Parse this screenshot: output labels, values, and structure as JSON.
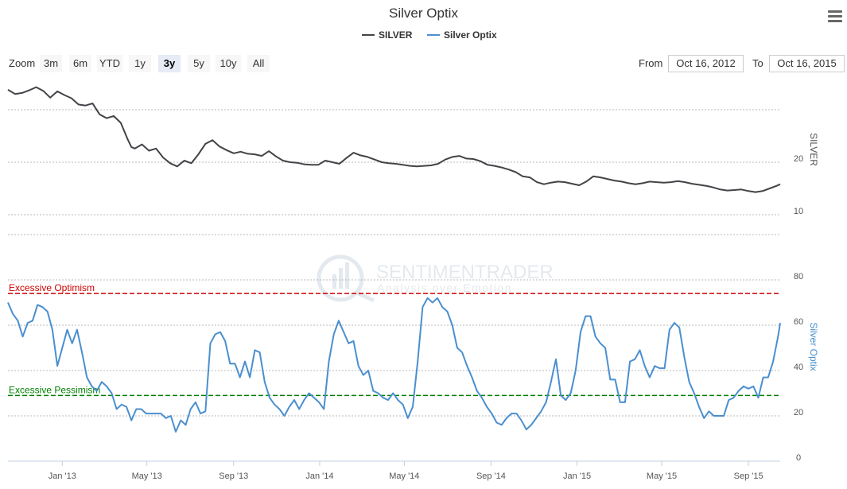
{
  "title": "Silver Optix",
  "legend": [
    {
      "name": "SILVER",
      "color": "#434348"
    },
    {
      "name": "Silver Optix",
      "color": "#4a8fcf"
    }
  ],
  "range_selector": {
    "zoom_label": "Zoom",
    "buttons": [
      "3m",
      "6m",
      "YTD",
      "1y",
      "3y",
      "5y",
      "10y",
      "All"
    ],
    "selected": "3y",
    "from_label": "From",
    "from_value": "Oct 16, 2012",
    "to_label": "To",
    "to_value": "Oct 16, 2015"
  },
  "watermark": {
    "brand": "SENTIMENTRADER",
    "tagline": "Analysis over Emotion"
  },
  "icons": {
    "menu": "hamburger-menu-icon"
  },
  "chart_data": [
    {
      "type": "line",
      "name": "SILVER",
      "ylabel": "SILVER",
      "color": "#434348",
      "yticks": [
        10,
        20
      ],
      "ylim": [
        5,
        35
      ],
      "x_range": [
        "2012-10-16",
        "2015-10-16"
      ],
      "series": [
        {
          "name": "SILVER",
          "x": [
            "2012-10-16",
            "2012-10-26",
            "2012-11-05",
            "2012-11-15",
            "2012-11-25",
            "2012-12-05",
            "2012-12-15",
            "2012-12-25",
            "2013-01-04",
            "2013-01-14",
            "2013-01-24",
            "2013-02-03",
            "2013-02-13",
            "2013-02-23",
            "2013-03-05",
            "2013-03-15",
            "2013-03-25",
            "2013-04-04",
            "2013-04-09",
            "2013-04-14",
            "2013-04-24",
            "2013-05-04",
            "2013-05-14",
            "2013-05-24",
            "2013-06-03",
            "2013-06-13",
            "2013-06-23",
            "2013-07-03",
            "2013-07-13",
            "2013-07-23",
            "2013-08-02",
            "2013-08-12",
            "2013-08-22",
            "2013-09-01",
            "2013-09-11",
            "2013-09-21",
            "2013-10-01",
            "2013-10-11",
            "2013-10-21",
            "2013-10-31",
            "2013-11-10",
            "2013-11-20",
            "2013-11-30",
            "2013-12-10",
            "2013-12-20",
            "2013-12-30",
            "2014-01-09",
            "2014-01-19",
            "2014-01-29",
            "2014-02-08",
            "2014-02-18",
            "2014-02-28",
            "2014-03-10",
            "2014-03-20",
            "2014-03-30",
            "2014-04-09",
            "2014-04-19",
            "2014-04-29",
            "2014-05-09",
            "2014-05-19",
            "2014-05-29",
            "2014-06-08",
            "2014-06-18",
            "2014-06-28",
            "2014-07-08",
            "2014-07-18",
            "2014-07-28",
            "2014-08-07",
            "2014-08-17",
            "2014-08-27",
            "2014-09-06",
            "2014-09-16",
            "2014-09-26",
            "2014-10-06",
            "2014-10-16",
            "2014-10-26",
            "2014-11-05",
            "2014-11-15",
            "2014-11-25",
            "2014-12-05",
            "2014-12-15",
            "2014-12-25",
            "2015-01-04",
            "2015-01-14",
            "2015-01-24",
            "2015-02-03",
            "2015-02-13",
            "2015-02-23",
            "2015-03-05",
            "2015-03-15",
            "2015-03-25",
            "2015-04-04",
            "2015-04-14",
            "2015-04-24",
            "2015-05-04",
            "2015-05-14",
            "2015-05-24",
            "2015-06-03",
            "2015-06-13",
            "2015-06-23",
            "2015-07-03",
            "2015-07-13",
            "2015-07-23",
            "2015-08-02",
            "2015-08-12",
            "2015-08-22",
            "2015-09-01",
            "2015-09-11",
            "2015-09-21",
            "2015-10-01",
            "2015-10-11",
            "2015-10-16"
          ],
          "values": [
            33.8,
            33.0,
            33.2,
            33.7,
            34.3,
            33.6,
            32.3,
            33.5,
            32.8,
            32.2,
            31.0,
            30.8,
            31.2,
            29.1,
            28.4,
            28.8,
            27.5,
            24.3,
            22.9,
            22.6,
            23.4,
            22.2,
            22.6,
            20.9,
            19.8,
            19.2,
            20.3,
            19.8,
            21.5,
            23.5,
            24.2,
            23.0,
            22.3,
            21.7,
            22.0,
            21.6,
            21.5,
            21.2,
            22.1,
            21.1,
            20.3,
            20.0,
            19.9,
            19.6,
            19.5,
            19.5,
            20.3,
            20.0,
            19.7,
            20.8,
            21.8,
            21.3,
            21.0,
            20.5,
            20.0,
            19.8,
            19.7,
            19.5,
            19.3,
            19.2,
            19.3,
            19.4,
            19.7,
            20.5,
            21.0,
            21.2,
            20.7,
            20.6,
            20.2,
            19.5,
            19.3,
            19.0,
            18.6,
            18.1,
            17.3,
            17.1,
            16.2,
            15.8,
            16.1,
            16.3,
            16.2,
            15.9,
            15.6,
            16.3,
            17.3,
            17.1,
            16.8,
            16.5,
            16.3,
            16.0,
            15.8,
            16.0,
            16.3,
            16.2,
            16.1,
            16.2,
            16.4,
            16.2,
            15.9,
            15.7,
            15.5,
            15.2,
            14.8,
            14.6,
            14.7,
            14.8,
            14.5,
            14.3,
            14.5,
            15.0,
            15.5,
            15.8
          ]
        }
      ]
    },
    {
      "type": "line",
      "name": "Silver Optix",
      "ylabel": "Silver Optix",
      "color": "#4a8fcf",
      "yticks": [
        0,
        20,
        40,
        60,
        80
      ],
      "ylim": [
        0,
        80
      ],
      "x_range": [
        "2012-10-16",
        "2015-10-16"
      ],
      "xticks": [
        "Jan '13",
        "May '13",
        "Sep '13",
        "Jan '14",
        "May '14",
        "Sep '14",
        "Jan '15",
        "May '15",
        "Sep '15"
      ],
      "reference_lines": [
        {
          "label": "Excessive Optimism",
          "value": 74,
          "color": "#cc0000"
        },
        {
          "label": "Excessive Pessimism",
          "value": 29,
          "color": "#008000"
        }
      ],
      "series": [
        {
          "name": "Silver Optix",
          "x": [
            "2012-10-16",
            "2012-10-23",
            "2012-10-30",
            "2012-11-06",
            "2012-11-13",
            "2012-11-20",
            "2012-11-27",
            "2012-12-04",
            "2012-12-11",
            "2012-12-18",
            "2012-12-25",
            "2013-01-01",
            "2013-01-08",
            "2013-01-15",
            "2013-01-22",
            "2013-01-29",
            "2013-02-05",
            "2013-02-12",
            "2013-02-19",
            "2013-02-26",
            "2013-03-05",
            "2013-03-12",
            "2013-03-19",
            "2013-03-26",
            "2013-04-02",
            "2013-04-09",
            "2013-04-16",
            "2013-04-23",
            "2013-04-30",
            "2013-05-07",
            "2013-05-14",
            "2013-05-21",
            "2013-05-28",
            "2013-06-04",
            "2013-06-11",
            "2013-06-18",
            "2013-06-25",
            "2013-07-02",
            "2013-07-09",
            "2013-07-16",
            "2013-07-23",
            "2013-07-30",
            "2013-08-06",
            "2013-08-13",
            "2013-08-20",
            "2013-08-27",
            "2013-09-03",
            "2013-09-10",
            "2013-09-17",
            "2013-09-24",
            "2013-10-01",
            "2013-10-08",
            "2013-10-15",
            "2013-10-22",
            "2013-10-29",
            "2013-11-05",
            "2013-11-12",
            "2013-11-19",
            "2013-11-26",
            "2013-12-03",
            "2013-12-10",
            "2013-12-17",
            "2013-12-24",
            "2013-12-31",
            "2014-01-07",
            "2014-01-14",
            "2014-01-21",
            "2014-01-28",
            "2014-02-04",
            "2014-02-11",
            "2014-02-18",
            "2014-02-25",
            "2014-03-04",
            "2014-03-11",
            "2014-03-18",
            "2014-03-25",
            "2014-04-01",
            "2014-04-08",
            "2014-04-15",
            "2014-04-22",
            "2014-04-29",
            "2014-05-06",
            "2014-05-13",
            "2014-05-20",
            "2014-05-27",
            "2014-06-03",
            "2014-06-10",
            "2014-06-17",
            "2014-06-24",
            "2014-07-01",
            "2014-07-08",
            "2014-07-15",
            "2014-07-22",
            "2014-07-29",
            "2014-08-05",
            "2014-08-12",
            "2014-08-19",
            "2014-08-26",
            "2014-09-02",
            "2014-09-09",
            "2014-09-16",
            "2014-09-23",
            "2014-09-30",
            "2014-10-07",
            "2014-10-14",
            "2014-10-21",
            "2014-10-28",
            "2014-11-04",
            "2014-11-11",
            "2014-11-18",
            "2014-11-25",
            "2014-12-02",
            "2014-12-09",
            "2014-12-16",
            "2014-12-23",
            "2014-12-30",
            "2015-01-06",
            "2015-01-13",
            "2015-01-20",
            "2015-01-27",
            "2015-02-03",
            "2015-02-10",
            "2015-02-17",
            "2015-02-24",
            "2015-03-03",
            "2015-03-10",
            "2015-03-17",
            "2015-03-24",
            "2015-03-31",
            "2015-04-07",
            "2015-04-14",
            "2015-04-21",
            "2015-04-28",
            "2015-05-05",
            "2015-05-12",
            "2015-05-19",
            "2015-05-26",
            "2015-06-02",
            "2015-06-09",
            "2015-06-16",
            "2015-06-23",
            "2015-06-30",
            "2015-07-07",
            "2015-07-14",
            "2015-07-21",
            "2015-07-28",
            "2015-08-04",
            "2015-08-11",
            "2015-08-18",
            "2015-08-25",
            "2015-09-01",
            "2015-09-08",
            "2015-09-15",
            "2015-09-22",
            "2015-09-29",
            "2015-10-06",
            "2015-10-13",
            "2015-10-16"
          ],
          "values": [
            70,
            65,
            62,
            55,
            61,
            62,
            69,
            68,
            66,
            58,
            42,
            50,
            58,
            52,
            58,
            48,
            37,
            33,
            31,
            35,
            33,
            30,
            23,
            25,
            24,
            18,
            23,
            23,
            21,
            21,
            21,
            21,
            19,
            20,
            13,
            18,
            16,
            23,
            26,
            21,
            22,
            52,
            56,
            57,
            53,
            43,
            43,
            37,
            44,
            37,
            49,
            48,
            35,
            28,
            25,
            23,
            20,
            24,
            27,
            23,
            27,
            30,
            28,
            26,
            23,
            44,
            56,
            62,
            57,
            52,
            53,
            42,
            38,
            40,
            31,
            30,
            28,
            27,
            30,
            27,
            25,
            19,
            24,
            44,
            68,
            72,
            70,
            72,
            68,
            66,
            60,
            50,
            48,
            42,
            37,
            31,
            28,
            24,
            21,
            17,
            16,
            19,
            21,
            21,
            18,
            14,
            16,
            19,
            22,
            26,
            35,
            45,
            29,
            27,
            30,
            40,
            57,
            64,
            64,
            55,
            52,
            50,
            36,
            36,
            26,
            26,
            44,
            45,
            49,
            42,
            37,
            42,
            41,
            41,
            58,
            61,
            59,
            46,
            35,
            30,
            24,
            19,
            22,
            20,
            20,
            20,
            27,
            28,
            31,
            33,
            32,
            33,
            28,
            37,
            37,
            44,
            55,
            61
          ]
        }
      ]
    }
  ]
}
